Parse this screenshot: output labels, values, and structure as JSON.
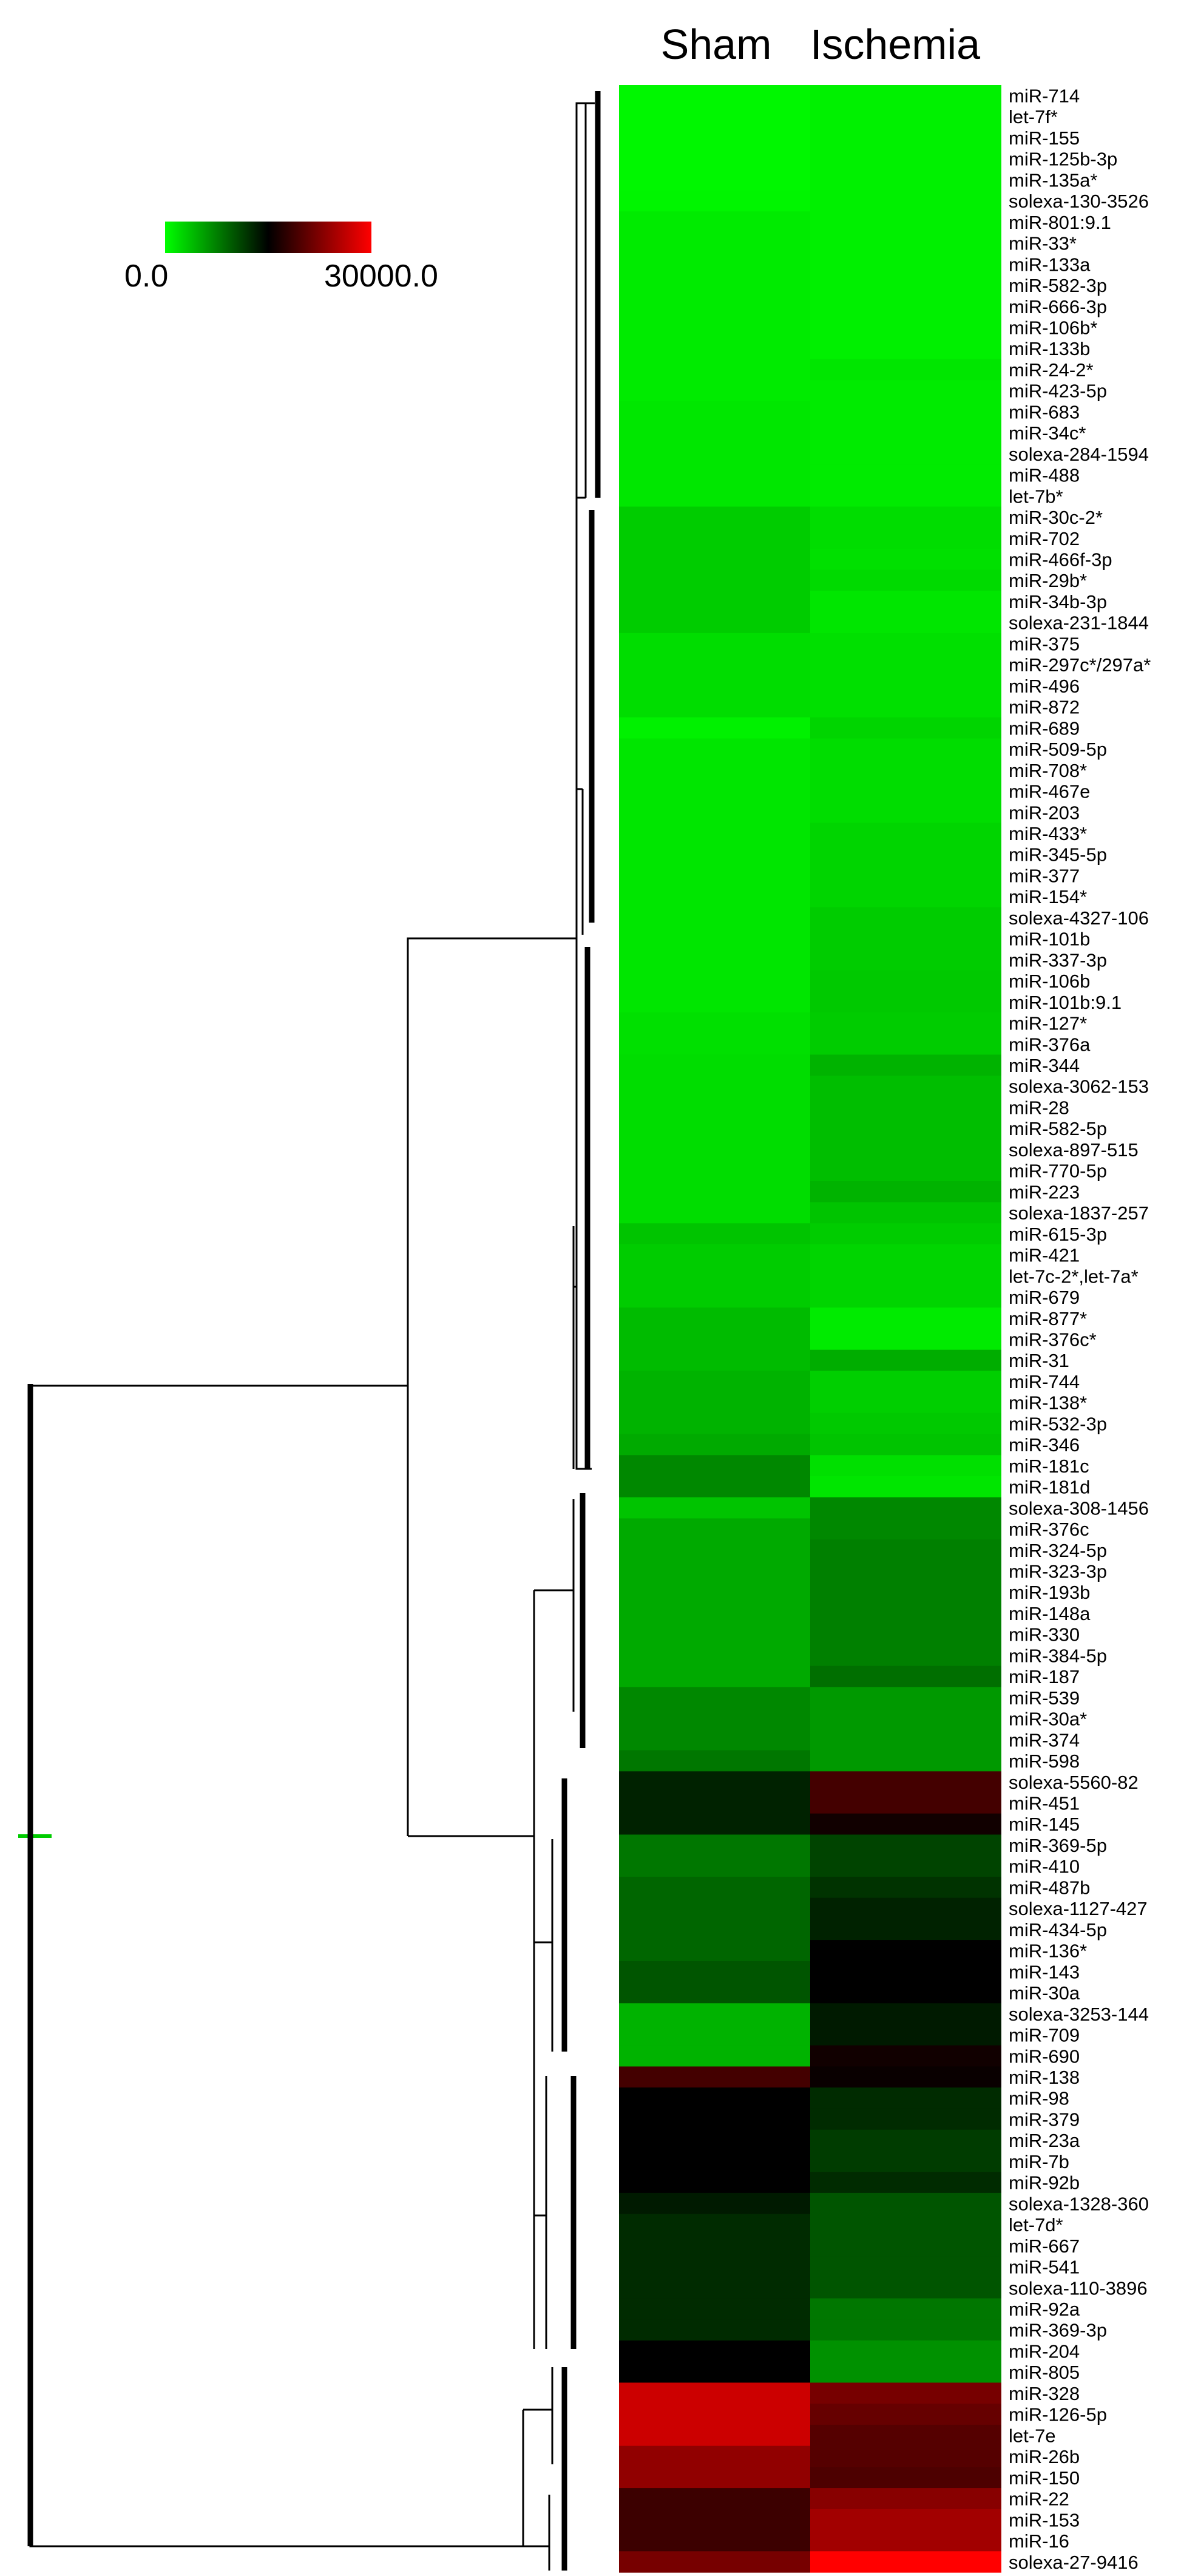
{
  "chart_data": {
    "type": "heatmap",
    "columns": [
      "Sham",
      "Ischemia"
    ],
    "scale": {
      "min": 0.0,
      "max": 30000.0,
      "min_label": "0.0",
      "max_label": "30000.0",
      "colors": [
        "#00ff00",
        "#000000",
        "#ff0000"
      ]
    },
    "rows": [
      {
        "label": "miR-714",
        "values": [
          500,
          800
        ]
      },
      {
        "label": "let-7f*",
        "values": [
          500,
          800
        ]
      },
      {
        "label": "miR-155",
        "values": [
          500,
          800
        ]
      },
      {
        "label": "miR-125b-3p",
        "values": [
          500,
          800
        ]
      },
      {
        "label": "miR-135a*",
        "values": [
          500,
          800
        ]
      },
      {
        "label": "solexa-130-3526",
        "values": [
          600,
          900
        ]
      },
      {
        "label": "miR-801:9.1",
        "values": [
          1200,
          900
        ]
      },
      {
        "label": "miR-33*",
        "values": [
          1200,
          900
        ]
      },
      {
        "label": "miR-133a",
        "values": [
          1200,
          900
        ]
      },
      {
        "label": "miR-582-3p",
        "values": [
          1200,
          900
        ]
      },
      {
        "label": "miR-666-3p",
        "values": [
          1200,
          900
        ]
      },
      {
        "label": "miR-106b*",
        "values": [
          1200,
          900
        ]
      },
      {
        "label": "miR-133b",
        "values": [
          1200,
          900
        ]
      },
      {
        "label": "miR-24-2*",
        "values": [
          1200,
          1500
        ]
      },
      {
        "label": "miR-423-5p",
        "values": [
          1200,
          1200
        ]
      },
      {
        "label": "miR-683",
        "values": [
          1400,
          1200
        ]
      },
      {
        "label": "miR-34c*",
        "values": [
          1400,
          1200
        ]
      },
      {
        "label": "solexa-284-1594",
        "values": [
          1400,
          1200
        ]
      },
      {
        "label": "miR-488",
        "values": [
          1400,
          1200
        ]
      },
      {
        "label": "let-7b*",
        "values": [
          1400,
          1200
        ]
      },
      {
        "label": "miR-30c-2*",
        "values": [
          3000,
          2000
        ]
      },
      {
        "label": "miR-702",
        "values": [
          3000,
          2000
        ]
      },
      {
        "label": "miR-466f-3p",
        "values": [
          3000,
          1800
        ]
      },
      {
        "label": "miR-29b*",
        "values": [
          3000,
          2200
        ]
      },
      {
        "label": "miR-34b-3p",
        "values": [
          3000,
          1500
        ]
      },
      {
        "label": "solexa-231-1844",
        "values": [
          3000,
          1500
        ]
      },
      {
        "label": "miR-375",
        "values": [
          2000,
          1800
        ]
      },
      {
        "label": "miR-297c*/297a*",
        "values": [
          2000,
          1800
        ]
      },
      {
        "label": "miR-496",
        "values": [
          2000,
          1800
        ]
      },
      {
        "label": "miR-872",
        "values": [
          2000,
          1800
        ]
      },
      {
        "label": "miR-689",
        "values": [
          800,
          2500
        ]
      },
      {
        "label": "miR-509-5p",
        "values": [
          1500,
          2000
        ]
      },
      {
        "label": "miR-708*",
        "values": [
          1500,
          2000
        ]
      },
      {
        "label": "miR-467e",
        "values": [
          1500,
          2000
        ]
      },
      {
        "label": "miR-203",
        "values": [
          1500,
          2000
        ]
      },
      {
        "label": "miR-433*",
        "values": [
          1500,
          2500
        ]
      },
      {
        "label": "miR-345-5p",
        "values": [
          1500,
          2500
        ]
      },
      {
        "label": "miR-377",
        "values": [
          1500,
          2500
        ]
      },
      {
        "label": "miR-154*",
        "values": [
          1500,
          2500
        ]
      },
      {
        "label": "solexa-4327-106",
        "values": [
          1500,
          3000
        ]
      },
      {
        "label": "miR-101b",
        "values": [
          1500,
          3000
        ]
      },
      {
        "label": "miR-337-3p",
        "values": [
          1500,
          3000
        ]
      },
      {
        "label": "miR-106b",
        "values": [
          1500,
          3200
        ]
      },
      {
        "label": "miR-101b:9.1",
        "values": [
          1500,
          3200
        ]
      },
      {
        "label": "miR-127*",
        "values": [
          1800,
          3000
        ]
      },
      {
        "label": "miR-376a",
        "values": [
          1800,
          3000
        ]
      },
      {
        "label": "miR-344",
        "values": [
          2000,
          4500
        ]
      },
      {
        "label": "solexa-3062-153",
        "values": [
          2000,
          3800
        ]
      },
      {
        "label": "miR-28",
        "values": [
          2000,
          3800
        ]
      },
      {
        "label": "miR-582-5p",
        "values": [
          2000,
          3800
        ]
      },
      {
        "label": "solexa-897-515",
        "values": [
          2000,
          3800
        ]
      },
      {
        "label": "miR-770-5p",
        "values": [
          2000,
          3800
        ]
      },
      {
        "label": "miR-223",
        "values": [
          2000,
          4500
        ]
      },
      {
        "label": "solexa-1837-257",
        "values": [
          2000,
          3500
        ]
      },
      {
        "label": "miR-615-3p",
        "values": [
          3500,
          3000
        ]
      },
      {
        "label": "miR-421",
        "values": [
          3000,
          2500
        ]
      },
      {
        "label": "let-7c-2*,let-7a*",
        "values": [
          3000,
          2500
        ]
      },
      {
        "label": "miR-679",
        "values": [
          3000,
          2500
        ]
      },
      {
        "label": "miR-877*",
        "values": [
          4000,
          1200
        ]
      },
      {
        "label": "miR-376c*",
        "values": [
          4000,
          1200
        ]
      },
      {
        "label": "miR-31",
        "values": [
          4000,
          4800
        ]
      },
      {
        "label": "miR-744",
        "values": [
          4500,
          2800
        ]
      },
      {
        "label": "miR-138*",
        "values": [
          4500,
          2800
        ]
      },
      {
        "label": "miR-532-3p",
        "values": [
          4500,
          3200
        ]
      },
      {
        "label": "miR-346",
        "values": [
          5000,
          3500
        ]
      },
      {
        "label": "miR-181c",
        "values": [
          7000,
          1800
        ]
      },
      {
        "label": "miR-181d",
        "values": [
          7000,
          1500
        ]
      },
      {
        "label": "solexa-308-1456",
        "values": [
          3500,
          7000
        ]
      },
      {
        "label": "miR-376c",
        "values": [
          5000,
          7000
        ]
      },
      {
        "label": "miR-324-5p",
        "values": [
          5000,
          7500
        ]
      },
      {
        "label": "miR-323-3p",
        "values": [
          5000,
          7500
        ]
      },
      {
        "label": "miR-193b",
        "values": [
          5000,
          7500
        ]
      },
      {
        "label": "miR-148a",
        "values": [
          5000,
          7500
        ]
      },
      {
        "label": "miR-330",
        "values": [
          5000,
          7500
        ]
      },
      {
        "label": "miR-384-5p",
        "values": [
          5000,
          7500
        ]
      },
      {
        "label": "miR-187",
        "values": [
          5000,
          8500
        ]
      },
      {
        "label": "miR-539",
        "values": [
          7000,
          6000
        ]
      },
      {
        "label": "miR-30a*",
        "values": [
          7000,
          6000
        ]
      },
      {
        "label": "miR-374",
        "values": [
          7000,
          6000
        ]
      },
      {
        "label": "miR-598",
        "values": [
          8000,
          6000
        ]
      },
      {
        "label": "solexa-5560-82",
        "values": [
          13000,
          19000
        ]
      },
      {
        "label": "miR-451",
        "values": [
          13000,
          19000
        ]
      },
      {
        "label": "miR-145",
        "values": [
          13000,
          16000
        ]
      },
      {
        "label": "miR-369-5p",
        "values": [
          8000,
          11000
        ]
      },
      {
        "label": "miR-410",
        "values": [
          8000,
          11000
        ]
      },
      {
        "label": "miR-487b",
        "values": [
          9000,
          12000
        ]
      },
      {
        "label": "solexa-1127-427",
        "values": [
          9000,
          13000
        ]
      },
      {
        "label": "miR-434-5p",
        "values": [
          9000,
          13000
        ]
      },
      {
        "label": "miR-136*",
        "values": [
          9000,
          15000
        ]
      },
      {
        "label": "miR-143",
        "values": [
          10000,
          15000
        ]
      },
      {
        "label": "miR-30a",
        "values": [
          10000,
          15000
        ]
      },
      {
        "label": "solexa-3253-144",
        "values": [
          4500,
          13500
        ]
      },
      {
        "label": "miR-709",
        "values": [
          4500,
          13500
        ]
      },
      {
        "label": "miR-690",
        "values": [
          4500,
          16000
        ]
      },
      {
        "label": "miR-138",
        "values": [
          19000,
          15500
        ]
      },
      {
        "label": "miR-98",
        "values": [
          15000,
          12500
        ]
      },
      {
        "label": "miR-379",
        "values": [
          15000,
          12500
        ]
      },
      {
        "label": "miR-23a",
        "values": [
          15000,
          11500
        ]
      },
      {
        "label": "miR-7b",
        "values": [
          15000,
          11500
        ]
      },
      {
        "label": "miR-92b",
        "values": [
          15000,
          12500
        ]
      },
      {
        "label": "solexa-1328-360",
        "values": [
          13500,
          10000
        ]
      },
      {
        "label": "let-7d*",
        "values": [
          12500,
          10000
        ]
      },
      {
        "label": "miR-667",
        "values": [
          12500,
          10000
        ]
      },
      {
        "label": "miR-541",
        "values": [
          12500,
          10000
        ]
      },
      {
        "label": "solexa-110-3896",
        "values": [
          12500,
          10000
        ]
      },
      {
        "label": "miR-92a",
        "values": [
          12500,
          8000
        ]
      },
      {
        "label": "miR-369-3p",
        "values": [
          12500,
          8000
        ]
      },
      {
        "label": "miR-204",
        "values": [
          15000,
          6500
        ]
      },
      {
        "label": "miR-805",
        "values": [
          15000,
          6500
        ]
      },
      {
        "label": "miR-328",
        "values": [
          27000,
          22000
        ]
      },
      {
        "label": "miR-126-5p",
        "values": [
          27000,
          21000
        ]
      },
      {
        "label": "let-7e",
        "values": [
          27000,
          20000
        ]
      },
      {
        "label": "miR-26b",
        "values": [
          23500,
          20000
        ]
      },
      {
        "label": "miR-150",
        "values": [
          23500,
          19500
        ]
      },
      {
        "label": "miR-22",
        "values": [
          18500,
          23000
        ]
      },
      {
        "label": "miR-153",
        "values": [
          18500,
          24500
        ]
      },
      {
        "label": "miR-16",
        "values": [
          18500,
          24500
        ]
      },
      {
        "label": "solexa-27-9416",
        "values": [
          22000,
          30000
        ]
      }
    ]
  }
}
